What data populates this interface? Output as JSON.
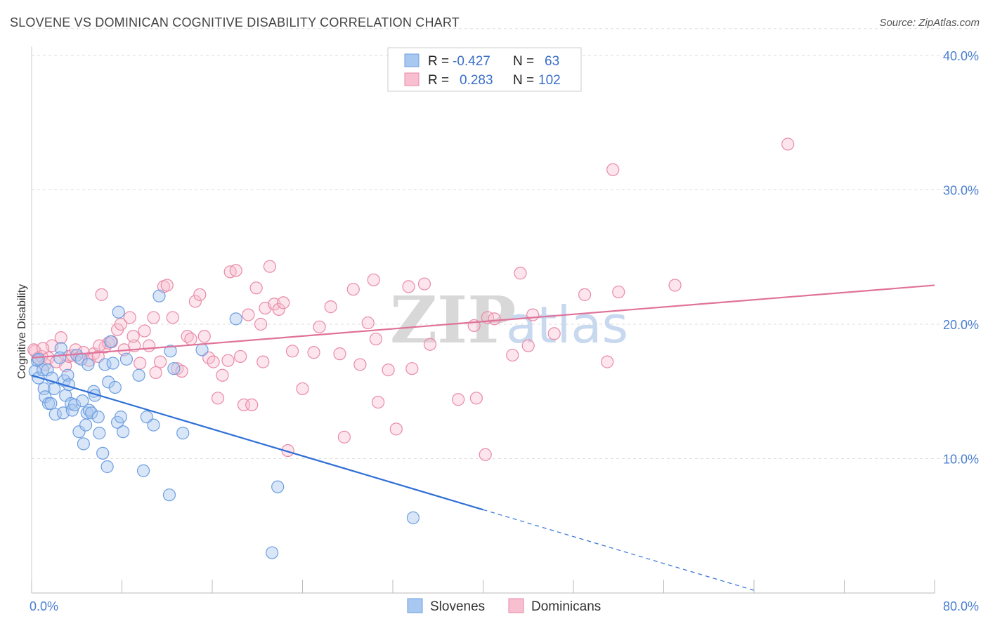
{
  "header": {
    "title": "SLOVENE VS DOMINICAN COGNITIVE DISABILITY CORRELATION CHART",
    "source": "Source: ZipAtlas.com"
  },
  "watermark": {
    "zip": "ZIP",
    "atlas": "atlas"
  },
  "stats_box": {
    "rows": [
      {
        "r_label": "R =",
        "r_value": "-0.427",
        "n_label": "N =",
        "n_value": "63",
        "color": "#a9c8f0",
        "stroke": "#6d9ee0"
      },
      {
        "r_label": "R =",
        "r_value": "0.283",
        "n_label": "N =",
        "n_value": "102",
        "color": "#f7bfd0",
        "stroke": "#e98aa8"
      }
    ]
  },
  "chart_data": {
    "type": "scatter",
    "xlabel": "",
    "ylabel": "Cognitive Disability",
    "xlim": [
      0,
      80
    ],
    "ylim": [
      0,
      42
    ],
    "x_tick_labels": [
      "0.0%",
      "80.0%"
    ],
    "y_ticks": [
      10,
      20,
      30,
      40
    ],
    "y_tick_labels": [
      "10.0%",
      "20.0%",
      "30.0%",
      "40.0%"
    ],
    "grid": true,
    "legend_position": "bottom-center",
    "colors": {
      "slovenes": "#6d9ee0",
      "dominicans": "#e98aa8",
      "slovenes_line": "#2f6fd6",
      "dominicans_line": "#e0729a"
    },
    "series": [
      {
        "name": "Slovenes",
        "trend": {
          "x0": 0,
          "y0": 16.2,
          "x1": 40,
          "y1": 6.2,
          "dashed_to_x": 64,
          "dashed_to_y": 0.2
        },
        "points": [
          [
            0.3,
            16.5
          ],
          [
            0.5,
            17.3
          ],
          [
            0.6,
            16.0
          ],
          [
            1.0,
            16.6
          ],
          [
            1.1,
            15.2
          ],
          [
            1.2,
            14.6
          ],
          [
            1.4,
            16.6
          ],
          [
            1.5,
            14.1
          ],
          [
            1.7,
            14.1
          ],
          [
            1.8,
            16.0
          ],
          [
            2.0,
            15.2
          ],
          [
            2.1,
            13.3
          ],
          [
            2.6,
            18.2
          ],
          [
            2.8,
            13.4
          ],
          [
            2.9,
            15.8
          ],
          [
            3.0,
            14.7
          ],
          [
            3.2,
            16.2
          ],
          [
            3.3,
            15.5
          ],
          [
            3.5,
            14.1
          ],
          [
            3.6,
            13.6
          ],
          [
            3.8,
            14.0
          ],
          [
            4.0,
            17.7
          ],
          [
            4.2,
            12.0
          ],
          [
            4.4,
            17.4
          ],
          [
            4.5,
            14.3
          ],
          [
            4.6,
            11.1
          ],
          [
            4.8,
            12.5
          ],
          [
            4.9,
            13.4
          ],
          [
            5.1,
            13.6
          ],
          [
            5.3,
            13.4
          ],
          [
            5.5,
            15.0
          ],
          [
            5.6,
            14.7
          ],
          [
            5.9,
            13.1
          ],
          [
            6.0,
            11.9
          ],
          [
            6.3,
            10.4
          ],
          [
            6.5,
            17.0
          ],
          [
            6.7,
            9.4
          ],
          [
            6.8,
            15.7
          ],
          [
            7.2,
            17.1
          ],
          [
            7.4,
            15.3
          ],
          [
            7.6,
            12.7
          ],
          [
            7.7,
            20.9
          ],
          [
            7.9,
            13.1
          ],
          [
            8.1,
            12.0
          ],
          [
            8.4,
            17.4
          ],
          [
            9.5,
            16.2
          ],
          [
            9.9,
            9.1
          ],
          [
            10.2,
            13.1
          ],
          [
            10.8,
            12.5
          ],
          [
            11.3,
            22.1
          ],
          [
            12.2,
            7.3
          ],
          [
            12.3,
            18.0
          ],
          [
            12.6,
            16.7
          ],
          [
            13.4,
            11.9
          ],
          [
            15.1,
            18.1
          ],
          [
            18.1,
            20.4
          ],
          [
            21.8,
            7.9
          ],
          [
            21.3,
            3.0
          ],
          [
            33.8,
            5.6
          ],
          [
            0.6,
            17.4
          ],
          [
            2.5,
            17.5
          ],
          [
            5.0,
            17.0
          ],
          [
            7.0,
            18.7
          ]
        ]
      },
      {
        "name": "Dominicans",
        "trend": {
          "x0": 0,
          "y0": 17.5,
          "x1": 80,
          "y1": 22.9
        },
        "points": [
          [
            0.3,
            18.0
          ],
          [
            0.6,
            17.5
          ],
          [
            0.9,
            17.6
          ],
          [
            1.2,
            17.0
          ],
          [
            1.5,
            17.5
          ],
          [
            1.8,
            18.4
          ],
          [
            2.2,
            17.2
          ],
          [
            2.6,
            19.0
          ],
          [
            3.0,
            16.9
          ],
          [
            3.3,
            17.6
          ],
          [
            3.6,
            17.7
          ],
          [
            3.9,
            18.1
          ],
          [
            4.2,
            17.5
          ],
          [
            4.6,
            17.9
          ],
          [
            5.1,
            17.3
          ],
          [
            5.5,
            17.8
          ],
          [
            5.9,
            17.6
          ],
          [
            6.2,
            22.2
          ],
          [
            6.5,
            18.3
          ],
          [
            6.8,
            18.6
          ],
          [
            7.1,
            18.7
          ],
          [
            7.6,
            19.6
          ],
          [
            7.9,
            20.0
          ],
          [
            8.2,
            18.1
          ],
          [
            8.7,
            20.5
          ],
          [
            9.1,
            18.4
          ],
          [
            9.6,
            17.1
          ],
          [
            10.0,
            19.5
          ],
          [
            10.4,
            18.4
          ],
          [
            10.8,
            20.5
          ],
          [
            11.4,
            17.2
          ],
          [
            11.7,
            22.8
          ],
          [
            12.0,
            22.9
          ],
          [
            12.5,
            20.5
          ],
          [
            12.9,
            16.7
          ],
          [
            13.3,
            16.5
          ],
          [
            13.8,
            19.1
          ],
          [
            14.1,
            18.9
          ],
          [
            14.5,
            21.7
          ],
          [
            14.9,
            22.2
          ],
          [
            15.3,
            19.1
          ],
          [
            15.7,
            17.5
          ],
          [
            16.1,
            17.2
          ],
          [
            16.5,
            14.5
          ],
          [
            16.9,
            16.2
          ],
          [
            17.4,
            17.3
          ],
          [
            17.6,
            23.9
          ],
          [
            18.1,
            24.0
          ],
          [
            18.5,
            17.6
          ],
          [
            18.8,
            14.0
          ],
          [
            19.2,
            20.7
          ],
          [
            19.5,
            14.0
          ],
          [
            19.9,
            22.7
          ],
          [
            20.3,
            20.0
          ],
          [
            20.7,
            21.2
          ],
          [
            21.1,
            24.3
          ],
          [
            21.5,
            21.5
          ],
          [
            21.9,
            21.1
          ],
          [
            22.3,
            21.6
          ],
          [
            22.7,
            10.6
          ],
          [
            23.1,
            18.0
          ],
          [
            24.0,
            15.2
          ],
          [
            25.0,
            17.9
          ],
          [
            25.5,
            19.8
          ],
          [
            26.5,
            21.3
          ],
          [
            27.3,
            17.8
          ],
          [
            27.7,
            11.6
          ],
          [
            28.5,
            22.6
          ],
          [
            29.1,
            17.0
          ],
          [
            29.8,
            20.1
          ],
          [
            30.3,
            23.3
          ],
          [
            30.5,
            18.9
          ],
          [
            30.7,
            14.2
          ],
          [
            31.6,
            16.6
          ],
          [
            32.3,
            12.2
          ],
          [
            33.4,
            22.8
          ],
          [
            33.7,
            16.7
          ],
          [
            34.8,
            23.0
          ],
          [
            35.3,
            18.5
          ],
          [
            37.8,
            14.4
          ],
          [
            39.2,
            19.9
          ],
          [
            39.4,
            14.5
          ],
          [
            40.2,
            10.3
          ],
          [
            40.4,
            20.5
          ],
          [
            41.0,
            20.4
          ],
          [
            42.6,
            17.7
          ],
          [
            43.3,
            23.8
          ],
          [
            44.0,
            18.4
          ],
          [
            44.4,
            20.7
          ],
          [
            46.3,
            19.3
          ],
          [
            49.0,
            22.2
          ],
          [
            51.0,
            17.2
          ],
          [
            51.5,
            31.5
          ],
          [
            52.0,
            22.4
          ],
          [
            57.0,
            22.9
          ],
          [
            67.0,
            33.4
          ],
          [
            0.2,
            18.1
          ],
          [
            1.0,
            18.2
          ],
          [
            6.0,
            18.4
          ],
          [
            9.0,
            19.1
          ],
          [
            11.0,
            16.4
          ],
          [
            20.5,
            17.2
          ]
        ]
      }
    ]
  }
}
